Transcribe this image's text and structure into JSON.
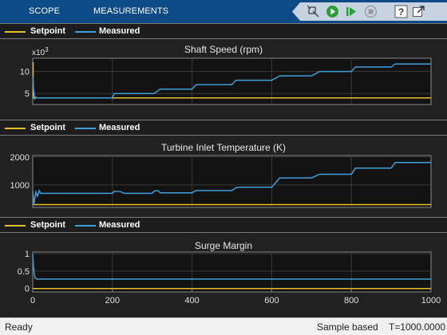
{
  "toolstrip": {
    "tabs": [
      "SCOPE",
      "MEASUREMENTS"
    ],
    "buttons": [
      {
        "name": "highlight-block-icon"
      },
      {
        "name": "run-icon"
      },
      {
        "name": "step-forward-icon"
      },
      {
        "name": "stop-icon"
      },
      {
        "name": "help-icon"
      },
      {
        "name": "undock-icon"
      }
    ]
  },
  "legend": {
    "setpoint_label": "Setpoint",
    "measured_label": "Measured",
    "setpoint_color": "#e6c02a",
    "measured_color": "#3d9fdb"
  },
  "chart_data": [
    {
      "type": "line",
      "title": "Shaft Speed (rpm)",
      "exponent_label": "x10",
      "exponent_power": "3",
      "xlim": [
        0,
        1000
      ],
      "ylim": [
        2.5,
        13
      ],
      "yticks": [
        5,
        10
      ],
      "series": [
        {
          "name": "Setpoint",
          "x": [
            0,
            1,
            1,
            100,
            200,
            300,
            400,
            500,
            600,
            700,
            800,
            900,
            1000
          ],
          "y": [
            12,
            12,
            4.0,
            4.0,
            4.0,
            4.0,
            4.0,
            4.0,
            4.0,
            4.0,
            4.0,
            4.0,
            4.0
          ]
        },
        {
          "name": "Measured",
          "x": [
            0,
            2,
            5,
            8,
            10,
            199,
            205,
            300,
            305,
            320,
            400,
            410,
            500,
            510,
            600,
            620,
            700,
            720,
            800,
            810,
            900,
            910,
            1000
          ],
          "y": [
            9,
            6,
            3.8,
            4.2,
            4.0,
            4.0,
            5.0,
            5.0,
            5.0,
            6.0,
            6.0,
            7.0,
            7.0,
            8.0,
            8.0,
            9.0,
            9.0,
            10.0,
            10.0,
            11.0,
            11.0,
            11.7,
            11.7
          ]
        }
      ]
    },
    {
      "type": "line",
      "title": "Turbine Inlet Temperature (K)",
      "xlim": [
        0,
        1000
      ],
      "ylim": [
        200,
        2050
      ],
      "yticks": [
        1000,
        2000
      ],
      "series": [
        {
          "name": "Setpoint",
          "x": [
            0,
            6,
            6,
            1000
          ],
          "y": [
            300,
            300,
            300,
            300
          ]
        },
        {
          "name": "Measured",
          "x": [
            0,
            3,
            6,
            8,
            12,
            16,
            20,
            25,
            30,
            200,
            205,
            220,
            230,
            300,
            305,
            315,
            320,
            400,
            410,
            500,
            510,
            520,
            600,
            620,
            700,
            720,
            800,
            810,
            900,
            910,
            1000
          ],
          "y": [
            800,
            300,
            600,
            750,
            600,
            800,
            700,
            700,
            700,
            700,
            780,
            760,
            700,
            700,
            780,
            800,
            720,
            720,
            800,
            800,
            900,
            920,
            920,
            1250,
            1250,
            1380,
            1380,
            1600,
            1600,
            1800,
            1800
          ]
        }
      ]
    },
    {
      "type": "line",
      "title": "Surge Margin",
      "xlim": [
        0,
        1000
      ],
      "xticks": [
        0,
        200,
        400,
        600,
        800,
        1000
      ],
      "ylim": [
        -0.1,
        1.05
      ],
      "yticks": [
        0,
        0.5,
        1
      ],
      "series": [
        {
          "name": "Setpoint",
          "x": [
            0,
            1000
          ],
          "y": [
            0,
            0
          ]
        },
        {
          "name": "Measured",
          "x": [
            0,
            2,
            4,
            6,
            10,
            1000
          ],
          "y": [
            1.0,
            0.6,
            0.4,
            0.3,
            0.27,
            0.27
          ]
        }
      ]
    }
  ],
  "status": {
    "ready": "Ready",
    "mode": "Sample based",
    "time": "T=1000.0000"
  }
}
